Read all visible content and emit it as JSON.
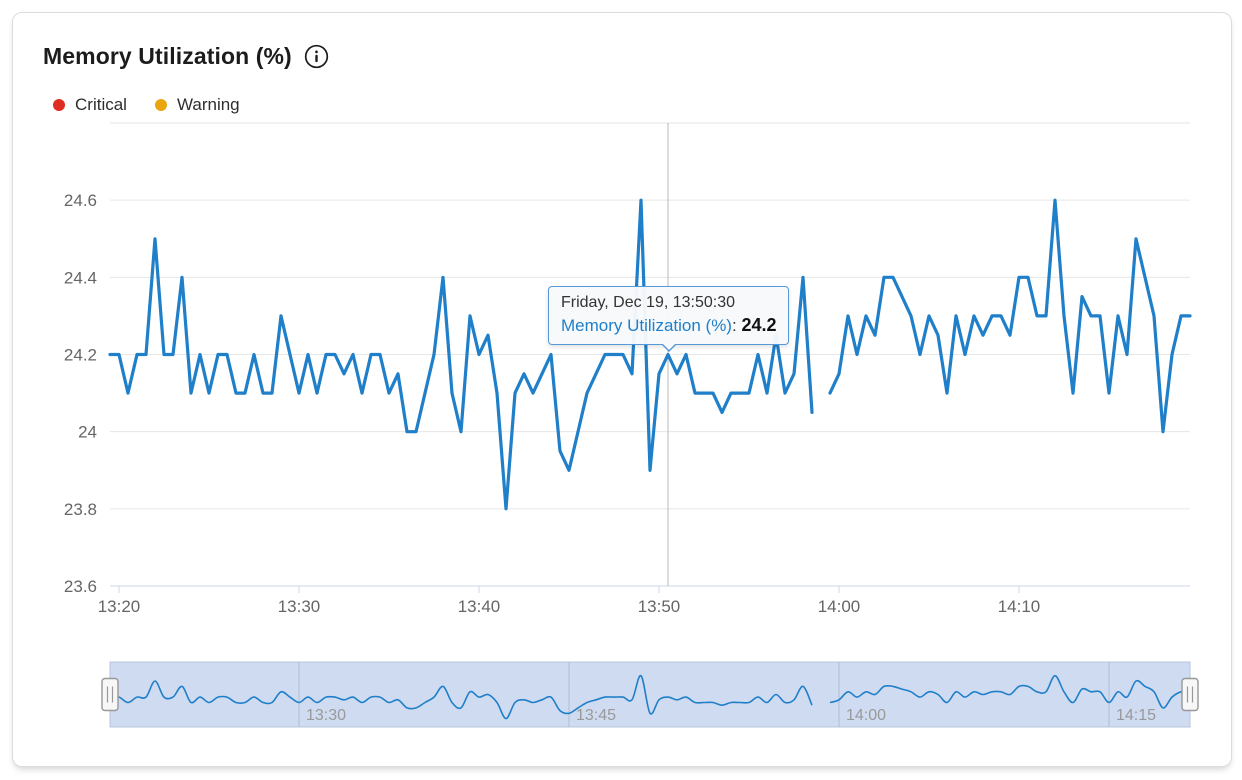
{
  "card": {
    "title": "Memory Utilization (%)"
  },
  "legend": {
    "items": [
      {
        "label": "Critical",
        "color": "#e02d21"
      },
      {
        "label": "Warning",
        "color": "#eaa60d"
      }
    ]
  },
  "tooltip": {
    "date_line": "Friday, Dec 19, 13:50:30",
    "series_label": "Memory Utilization (%)",
    "separator": ": ",
    "value": "24.2",
    "point_index": 62
  },
  "chart_data": {
    "type": "line",
    "title": "Memory Utilization (%)",
    "ylabel": "",
    "xlabel": "",
    "ylim": [
      23.6,
      24.8
    ],
    "y_ticks": [
      23.6,
      23.8,
      24,
      24.2,
      24.4,
      24.6
    ],
    "x_ticks": [
      "13:20",
      "13:30",
      "13:40",
      "13:50",
      "14:00",
      "14:10"
    ],
    "navigator_x_ticks": [
      "13:30",
      "13:45",
      "14:00",
      "14:15"
    ],
    "grid": true,
    "legend_position": "top",
    "crosshair_time": "13:50:30",
    "series": [
      {
        "name": "Memory Utilization (%)",
        "color": "#1f7fc9",
        "start_time": "13:19:30",
        "end_time": "14:19:30",
        "interval_seconds": 30,
        "values": [
          24.2,
          24.2,
          24.1,
          24.2,
          24.2,
          24.5,
          24.2,
          24.2,
          24.4,
          24.1,
          24.2,
          24.1,
          24.2,
          24.2,
          24.1,
          24.1,
          24.2,
          24.1,
          24.1,
          24.3,
          24.2,
          24.1,
          24.2,
          24.1,
          24.2,
          24.2,
          24.15,
          24.2,
          24.1,
          24.2,
          24.2,
          24.1,
          24.15,
          24.0,
          24.0,
          24.1,
          24.2,
          24.4,
          24.1,
          24.0,
          24.3,
          24.2,
          24.25,
          24.1,
          23.8,
          24.1,
          24.15,
          24.1,
          24.15,
          24.2,
          23.95,
          23.9,
          24.0,
          24.1,
          24.15,
          24.2,
          24.2,
          24.2,
          24.15,
          24.6,
          23.9,
          24.15,
          24.2,
          24.15,
          24.2,
          24.1,
          24.1,
          24.1,
          24.05,
          24.1,
          24.1,
          24.1,
          24.2,
          24.1,
          24.25,
          24.1,
          24.15,
          24.4,
          24.05,
          null,
          24.1,
          24.15,
          24.3,
          24.2,
          24.3,
          24.25,
          24.4,
          24.4,
          24.35,
          24.3,
          24.2,
          24.3,
          24.25,
          24.1,
          24.3,
          24.2,
          24.3,
          24.25,
          24.3,
          24.3,
          24.25,
          24.4,
          24.4,
          24.3,
          24.3,
          24.6,
          24.3,
          24.1,
          24.35,
          24.3,
          24.3,
          24.1,
          24.3,
          24.2,
          24.5,
          24.4,
          24.3,
          24.0,
          24.2,
          24.3,
          24.3
        ]
      }
    ],
    "colors": {
      "grid": "#e6e6e6",
      "axis_line": "#ccd6eb",
      "axis_label": "#666666",
      "crosshair": "#c4c4c4",
      "navigator_mask": "rgba(118,153,215,0.35)",
      "navigator_outline": "#b7c4dd",
      "navigator_grid": "#aebcd6",
      "navigator_label": "#999999",
      "handle_fill": "#f7f7f7",
      "handle_stroke": "#989898"
    }
  }
}
